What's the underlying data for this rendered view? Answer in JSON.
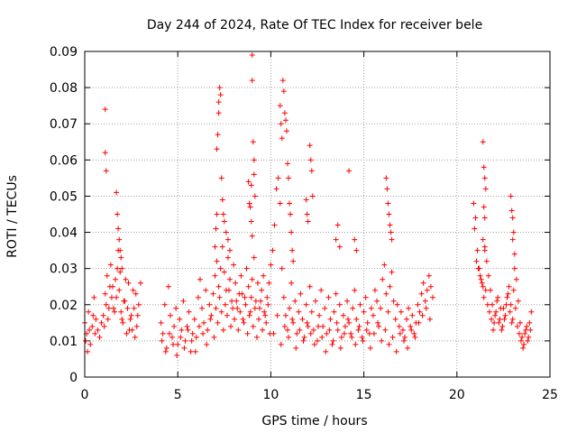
{
  "chart_data": {
    "type": "scatter",
    "title": "Day 244 of 2024, Rate Of TEC Index for receiver bele",
    "xlabel": "GPS time / hours",
    "ylabel": "ROTI / TECUs",
    "xlim": [
      0,
      25
    ],
    "ylim": [
      0,
      0.09
    ],
    "xticks": [
      "0",
      "5",
      "10",
      "15",
      "20",
      "25"
    ],
    "yticks": [
      "0",
      "0.01",
      "0.02",
      "0.03",
      "0.04",
      "0.05",
      "0.06",
      "0.07",
      "0.08",
      "0.09"
    ],
    "grid": true,
    "marker": "+",
    "series": [
      {
        "color": "#ff0000",
        "x": [
          0.0,
          0.1,
          0.2,
          0.3,
          0.4,
          0.5,
          0.6,
          0.7,
          0.8,
          0.9,
          1.0,
          1.1,
          1.2,
          1.3,
          1.4,
          1.5,
          1.6,
          1.7,
          1.8,
          1.9,
          2.0,
          2.1,
          2.2,
          2.3,
          2.4,
          2.5,
          2.6,
          2.7,
          2.8,
          2.9,
          3.0,
          0.05,
          0.15,
          0.25,
          0.45,
          0.55,
          1.05,
          1.15,
          1.25,
          1.35,
          1.45,
          1.55,
          1.65,
          1.75,
          1.85,
          1.95,
          2.05,
          2.15,
          2.25,
          2.35,
          2.45,
          2.55,
          2.65,
          2.75,
          2.85,
          1.1,
          1.1,
          1.15,
          1.7,
          1.75,
          1.8,
          1.85,
          1.9,
          1.95,
          2.0,
          4.1,
          4.2,
          4.3,
          4.4,
          4.5,
          4.6,
          4.7,
          4.8,
          4.9,
          5.0,
          5.1,
          5.2,
          5.3,
          5.4,
          5.5,
          5.6,
          5.7,
          5.8,
          5.9,
          6.0,
          6.1,
          6.2,
          6.3,
          6.4,
          6.5,
          6.6,
          6.7,
          6.8,
          6.9,
          7.0,
          7.1,
          7.2,
          7.3,
          7.4,
          7.5,
          7.6,
          7.7,
          7.8,
          7.9,
          8.0,
          8.1,
          8.2,
          8.3,
          8.4,
          8.5,
          8.6,
          8.7,
          8.8,
          8.9,
          9.0,
          9.1,
          9.2,
          9.3,
          9.4,
          9.5,
          9.6,
          9.7,
          9.8,
          9.9,
          10.0,
          4.15,
          4.35,
          4.55,
          4.75,
          4.95,
          5.15,
          5.35,
          5.55,
          5.75,
          5.95,
          6.15,
          6.35,
          6.55,
          6.75,
          6.95,
          7.05,
          7.15,
          7.25,
          7.35,
          7.45,
          7.55,
          7.65,
          7.75,
          7.85,
          7.95,
          8.05,
          8.15,
          8.25,
          8.35,
          8.45,
          8.55,
          8.65,
          8.75,
          8.85,
          8.95,
          9.05,
          9.15,
          9.25,
          9.35,
          9.45,
          9.55,
          9.65,
          9.75,
          9.85,
          9.95,
          7.0,
          7.05,
          7.1,
          7.1,
          7.15,
          7.2,
          7.2,
          7.25,
          7.3,
          7.35,
          7.4,
          7.45,
          7.5,
          7.6,
          7.7,
          7.8,
          8.8,
          8.85,
          8.9,
          8.95,
          9.0,
          9.0,
          9.05,
          9.1,
          9.1,
          9.15,
          8.95,
          9.0,
          10.5,
          10.55,
          10.6,
          10.65,
          10.7,
          10.75,
          10.8,
          10.85,
          10.9,
          10.95,
          11.0,
          11.05,
          11.1,
          11.15,
          11.2,
          10.1,
          10.2,
          10.3,
          10.4,
          10.5,
          10.6,
          10.7,
          10.8,
          10.9,
          11.0,
          11.1,
          11.2,
          11.3,
          11.4,
          11.5,
          11.6,
          11.7,
          11.8,
          11.9,
          12.0,
          12.1,
          12.2,
          12.3,
          12.4,
          12.5,
          12.6,
          12.7,
          12.8,
          12.9,
          13.0,
          13.1,
          13.2,
          13.3,
          13.4,
          13.5,
          13.6,
          13.7,
          13.8,
          13.9,
          14.0,
          14.1,
          14.2,
          14.3,
          14.4,
          14.5,
          14.6,
          14.7,
          14.8,
          14.9,
          15.0,
          15.1,
          15.2,
          15.3,
          15.4,
          15.5,
          15.6,
          15.7,
          15.8,
          15.9,
          16.0,
          16.1,
          16.2,
          16.3,
          16.4,
          16.5,
          16.6,
          16.7,
          16.8,
          16.9,
          17.0,
          17.1,
          17.2,
          17.3,
          17.4,
          17.5,
          17.6,
          17.7,
          17.8,
          17.9,
          18.0,
          18.1,
          18.2,
          18.3,
          18.4,
          18.5,
          18.6,
          18.7,
          10.15,
          10.35,
          10.55,
          10.75,
          10.95,
          11.15,
          11.35,
          11.55,
          11.75,
          11.95,
          12.15,
          12.35,
          12.55,
          12.75,
          12.95,
          13.15,
          13.35,
          13.55,
          13.75,
          13.95,
          14.15,
          14.35,
          14.55,
          14.75,
          14.95,
          15.15,
          15.35,
          15.55,
          15.75,
          15.95,
          16.15,
          16.35,
          16.55,
          16.75,
          16.95,
          17.15,
          17.35,
          17.55,
          17.75,
          17.95,
          18.15,
          18.35,
          18.55,
          12.1,
          12.15,
          12.2,
          12.25,
          14.2,
          11.9,
          11.95,
          12.0,
          16.2,
          16.25,
          16.3,
          16.35,
          16.4,
          16.45,
          16.5,
          13.5,
          13.6,
          13.7,
          14.5,
          14.6,
          20.9,
          21.0,
          21.1,
          21.2,
          21.3,
          21.4,
          21.5,
          21.6,
          21.7,
          21.8,
          21.9,
          22.0,
          22.1,
          22.2,
          22.3,
          22.4,
          22.5,
          22.6,
          22.7,
          22.8,
          22.9,
          23.0,
          23.1,
          23.2,
          23.3,
          23.4,
          23.5,
          23.6,
          23.7,
          23.8,
          23.9,
          24.0,
          20.95,
          21.05,
          21.15,
          21.25,
          21.35,
          21.45,
          21.55,
          21.65,
          21.75,
          21.85,
          21.95,
          22.05,
          22.15,
          22.25,
          22.35,
          22.45,
          22.55,
          22.65,
          22.75,
          22.85,
          22.95,
          23.05,
          23.15,
          23.25,
          23.35,
          23.45,
          23.55,
          23.65,
          23.75,
          23.85,
          23.95,
          21.4,
          21.45,
          21.5,
          21.55,
          21.45,
          21.5,
          21.4,
          21.5,
          22.9,
          22.95,
          23.0,
          23.05,
          23.0,
          23.1
        ],
        "y": [
          0.015,
          0.012,
          0.018,
          0.009,
          0.014,
          0.022,
          0.016,
          0.013,
          0.011,
          0.015,
          0.017,
          0.023,
          0.028,
          0.019,
          0.031,
          0.025,
          0.018,
          0.022,
          0.035,
          0.029,
          0.016,
          0.021,
          0.027,
          0.019,
          0.013,
          0.017,
          0.024,
          0.011,
          0.014,
          0.02,
          0.026,
          0.01,
          0.007,
          0.013,
          0.017,
          0.012,
          0.014,
          0.02,
          0.016,
          0.025,
          0.022,
          0.019,
          0.027,
          0.03,
          0.024,
          0.018,
          0.015,
          0.021,
          0.012,
          0.026,
          0.016,
          0.013,
          0.019,
          0.023,
          0.017,
          0.074,
          0.062,
          0.057,
          0.051,
          0.045,
          0.041,
          0.038,
          0.035,
          0.033,
          0.03,
          0.015,
          0.012,
          0.02,
          0.008,
          0.025,
          0.017,
          0.011,
          0.014,
          0.019,
          0.009,
          0.016,
          0.013,
          0.021,
          0.01,
          0.014,
          0.018,
          0.007,
          0.012,
          0.016,
          0.011,
          0.022,
          0.027,
          0.019,
          0.015,
          0.024,
          0.013,
          0.02,
          0.017,
          0.023,
          0.028,
          0.032,
          0.025,
          0.03,
          0.036,
          0.029,
          0.024,
          0.033,
          0.027,
          0.021,
          0.031,
          0.026,
          0.019,
          0.023,
          0.028,
          0.016,
          0.022,
          0.03,
          0.025,
          0.018,
          0.027,
          0.033,
          0.021,
          0.026,
          0.019,
          0.024,
          0.028,
          0.017,
          0.022,
          0.026,
          0.031,
          0.01,
          0.007,
          0.012,
          0.009,
          0.006,
          0.011,
          0.008,
          0.013,
          0.01,
          0.007,
          0.014,
          0.012,
          0.009,
          0.016,
          0.011,
          0.019,
          0.015,
          0.022,
          0.018,
          0.013,
          0.02,
          0.017,
          0.024,
          0.014,
          0.019,
          0.016,
          0.021,
          0.013,
          0.018,
          0.023,
          0.015,
          0.02,
          0.012,
          0.017,
          0.022,
          0.014,
          0.019,
          0.011,
          0.016,
          0.021,
          0.013,
          0.018,
          0.015,
          0.02,
          0.012,
          0.036,
          0.041,
          0.045,
          0.063,
          0.067,
          0.073,
          0.076,
          0.08,
          0.078,
          0.055,
          0.049,
          0.045,
          0.043,
          0.04,
          0.038,
          0.035,
          0.054,
          0.048,
          0.047,
          0.053,
          0.089,
          0.082,
          0.065,
          0.06,
          0.056,
          0.05,
          0.043,
          0.039,
          0.075,
          0.07,
          0.066,
          0.082,
          0.079,
          0.073,
          0.071,
          0.068,
          0.059,
          0.055,
          0.048,
          0.045,
          0.04,
          0.035,
          0.032,
          0.035,
          0.042,
          0.052,
          0.055,
          0.048,
          0.03,
          0.022,
          0.017,
          0.013,
          0.019,
          0.026,
          0.015,
          0.021,
          0.012,
          0.018,
          0.023,
          0.016,
          0.011,
          0.02,
          0.014,
          0.025,
          0.018,
          0.013,
          0.021,
          0.01,
          0.017,
          0.024,
          0.014,
          0.019,
          0.012,
          0.022,
          0.016,
          0.009,
          0.018,
          0.023,
          0.013,
          0.02,
          0.011,
          0.017,
          0.014,
          0.021,
          0.015,
          0.012,
          0.019,
          0.024,
          0.016,
          0.013,
          0.02,
          0.011,
          0.018,
          0.022,
          0.015,
          0.012,
          0.019,
          0.017,
          0.024,
          0.021,
          0.014,
          0.019,
          0.027,
          0.031,
          0.023,
          0.018,
          0.025,
          0.029,
          0.021,
          0.016,
          0.02,
          0.014,
          0.018,
          0.013,
          0.011,
          0.016,
          0.019,
          0.014,
          0.017,
          0.012,
          0.015,
          0.02,
          0.018,
          0.023,
          0.026,
          0.021,
          0.024,
          0.028,
          0.025,
          0.022,
          0.012,
          0.017,
          0.009,
          0.014,
          0.011,
          0.016,
          0.008,
          0.013,
          0.01,
          0.015,
          0.012,
          0.009,
          0.014,
          0.011,
          0.007,
          0.013,
          0.01,
          0.015,
          0.008,
          0.012,
          0.016,
          0.011,
          0.009,
          0.014,
          0.01,
          0.013,
          0.008,
          0.012,
          0.015,
          0.01,
          0.013,
          0.009,
          0.011,
          0.007,
          0.012,
          0.01,
          0.008,
          0.013,
          0.011,
          0.015,
          0.017,
          0.019,
          0.016,
          0.064,
          0.06,
          0.057,
          0.05,
          0.057,
          0.049,
          0.045,
          0.043,
          0.055,
          0.052,
          0.048,
          0.045,
          0.042,
          0.04,
          0.038,
          0.038,
          0.042,
          0.036,
          0.038,
          0.035,
          0.048,
          0.044,
          0.035,
          0.03,
          0.027,
          0.025,
          0.036,
          0.032,
          0.028,
          0.024,
          0.02,
          0.015,
          0.018,
          0.022,
          0.016,
          0.013,
          0.019,
          0.017,
          0.022,
          0.025,
          0.02,
          0.016,
          0.03,
          0.027,
          0.021,
          0.015,
          0.011,
          0.009,
          0.013,
          0.01,
          0.015,
          0.018,
          0.041,
          0.032,
          0.03,
          0.028,
          0.026,
          0.022,
          0.024,
          0.02,
          0.018,
          0.016,
          0.013,
          0.017,
          0.021,
          0.015,
          0.019,
          0.014,
          0.016,
          0.02,
          0.023,
          0.018,
          0.015,
          0.024,
          0.019,
          0.014,
          0.012,
          0.01,
          0.008,
          0.012,
          0.014,
          0.011,
          0.013,
          0.065,
          0.058,
          0.055,
          0.052,
          0.047,
          0.044,
          0.038,
          0.035,
          0.05,
          0.046,
          0.044,
          0.04,
          0.038,
          0.034
        ]
      }
    ]
  }
}
